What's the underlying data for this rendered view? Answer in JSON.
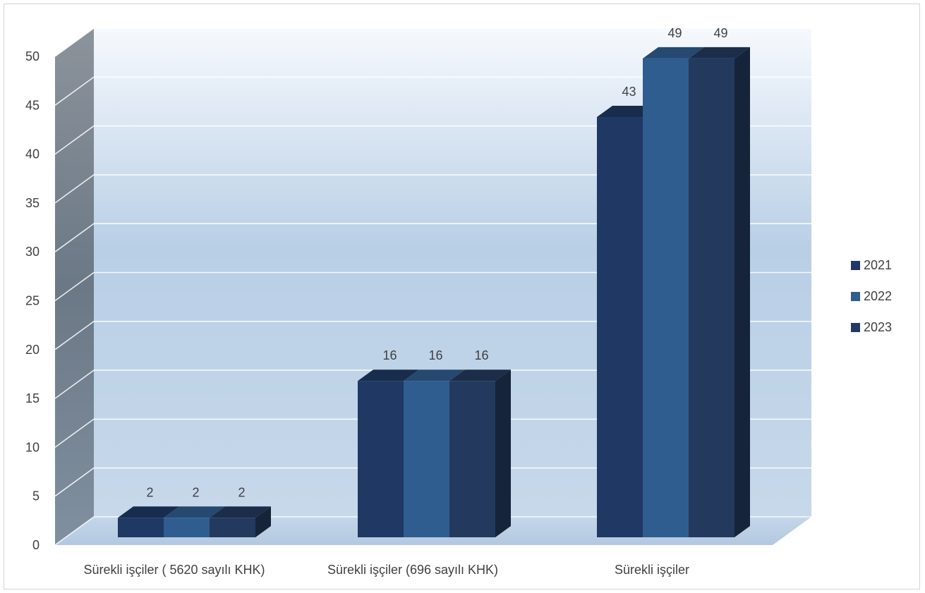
{
  "chart_data": {
    "type": "bar",
    "style": "3d-clustered-column",
    "categories": [
      "Sürekli işçiler ( 5620 sayılı KHK)",
      "Sürekli işçiler (696 sayılı KHK)",
      "Sürekli işçiler"
    ],
    "series": [
      {
        "name": "2021",
        "values": [
          2,
          16,
          43
        ],
        "color": "#1f3864"
      },
      {
        "name": "2022",
        "values": [
          2,
          16,
          49
        ],
        "color": "#2f5d8f"
      },
      {
        "name": "2023",
        "values": [
          2,
          16,
          49
        ],
        "color": "#233a5e"
      }
    ],
    "ylim": [
      0,
      50
    ],
    "yticks": [
      0,
      5,
      10,
      15,
      20,
      25,
      30,
      35,
      40,
      45,
      50
    ],
    "grid": true,
    "legend_position": "right",
    "data_labels": true
  }
}
